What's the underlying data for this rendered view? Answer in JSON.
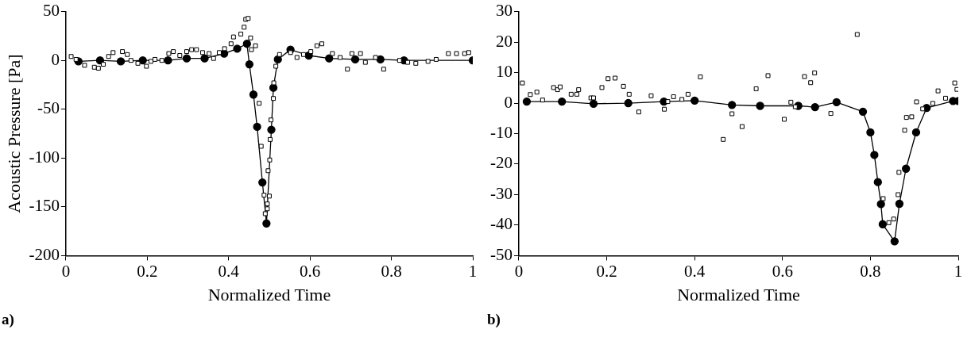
{
  "chart_data": [
    {
      "type": "scatter",
      "xlabel": "Normalized Time",
      "ylabel": "Acoustic Pressure [Pa]",
      "annotations": [
        "a)"
      ],
      "xlim": [
        0,
        1
      ],
      "xticks": [
        0,
        0.2,
        0.4,
        0.6,
        0.8,
        1
      ],
      "ylim": [
        -200,
        50
      ],
      "yticks": [
        -200,
        -150,
        -100,
        -50,
        0,
        50
      ],
      "grid": false,
      "legend": false,
      "series": [
        {
          "type": "scatter",
          "marker": "square",
          "color": "#000000",
          "x": [
            0.013,
            0.025,
            0.046,
            0.07,
            0.08,
            0.092,
            0.105,
            0.116,
            0.139,
            0.151,
            0.16,
            0.177,
            0.198,
            0.209,
            0.219,
            0.236,
            0.253,
            0.264,
            0.28,
            0.297,
            0.309,
            0.321,
            0.336,
            0.352,
            0.363,
            0.377,
            0.39,
            0.406,
            0.412,
            0.43,
            0.438,
            0.442,
            0.448,
            0.454,
            0.456,
            0.466,
            0.475,
            0.48,
            0.487,
            0.49,
            0.495,
            0.495,
            0.497,
            0.5,
            0.501,
            0.502,
            0.504,
            0.51,
            0.511,
            0.516,
            0.525,
            0.552,
            0.568,
            0.584,
            0.602,
            0.617,
            0.629,
            0.655,
            0.674,
            0.692,
            0.703,
            0.724,
            0.736,
            0.761,
            0.781,
            0.82,
            0.84,
            0.86,
            0.89,
            0.91,
            0.94,
            0.96,
            0.98,
            0.99
          ],
          "values": [
            4,
            1,
            -5,
            -7,
            -8,
            -4,
            4,
            8,
            9,
            6,
            0,
            -3,
            -6,
            -1,
            1,
            0,
            7,
            9,
            5,
            9,
            11,
            11,
            8,
            7,
            2,
            8,
            12,
            17,
            24,
            27,
            34,
            42,
            43,
            23,
            11,
            15,
            -44,
            -88,
            -138,
            -157,
            -152,
            -147,
            -113,
            -139,
            -102,
            -81,
            -61,
            -39,
            -23,
            -6,
            6,
            8,
            3,
            6,
            9,
            15,
            17,
            7,
            3,
            -9,
            7,
            7,
            -2,
            3,
            -9,
            0,
            -2,
            -3,
            -1,
            1,
            7,
            7,
            7,
            8
          ]
        },
        {
          "type": "line",
          "marker": "circle",
          "color": "#000000",
          "x": [
            0.031,
            0.084,
            0.135,
            0.189,
            0.251,
            0.297,
            0.341,
            0.389,
            0.421,
            0.445,
            0.451,
            0.461,
            0.47,
            0.483,
            0.493,
            0.505,
            0.51,
            0.521,
            0.552,
            0.597,
            0.647,
            0.711,
            0.773,
            0.831,
            1.0
          ],
          "values": [
            -1,
            0,
            -1,
            0,
            0,
            2,
            2,
            7,
            12,
            17,
            -4,
            -35,
            -68,
            -125,
            -167,
            -71,
            -28,
            1,
            11,
            5,
            2,
            1,
            1,
            0,
            0
          ]
        }
      ]
    },
    {
      "type": "scatter",
      "xlabel": "Normalized Time",
      "annotations": [
        "b)"
      ],
      "xlim": [
        0,
        1
      ],
      "xticks": [
        0,
        0.2,
        0.4,
        0.6,
        0.8,
        1
      ],
      "ylim": [
        -50,
        30
      ],
      "yticks": [
        -50,
        -40,
        -30,
        -20,
        -10,
        0,
        10,
        20,
        30
      ],
      "grid": false,
      "legend": false,
      "series": [
        {
          "type": "scatter",
          "marker": "square",
          "color": "#000000",
          "x": [
            0.008,
            0.026,
            0.041,
            0.054,
            0.079,
            0.088,
            0.094,
            0.119,
            0.132,
            0.136,
            0.164,
            0.17,
            0.189,
            0.203,
            0.219,
            0.238,
            0.251,
            0.273,
            0.301,
            0.331,
            0.339,
            0.352,
            0.371,
            0.385,
            0.413,
            0.465,
            0.485,
            0.508,
            0.54,
            0.567,
            0.604,
            0.619,
            0.629,
            0.65,
            0.664,
            0.673,
            0.71,
            0.77,
            0.829,
            0.842,
            0.853,
            0.863,
            0.865,
            0.878,
            0.882,
            0.894,
            0.905,
            0.919,
            0.942,
            0.954,
            0.971,
            0.992,
            0.997
          ],
          "values": [
            6.6,
            2.8,
            3.6,
            1,
            5.1,
            4.4,
            5.3,
            2.9,
            2.9,
            4.4,
            1.7,
            1.7,
            5.1,
            8,
            8.2,
            5.5,
            2.9,
            -2.9,
            2.4,
            -2,
            0.5,
            2.1,
            1.2,
            2.9,
            8.6,
            -11.9,
            -3.5,
            -7.7,
            4.7,
            9,
            -5.3,
            0.3,
            -1.2,
            8.7,
            6.7,
            9.9,
            -3.4,
            22.5,
            -31.3,
            -39.2,
            -38,
            -30,
            -22.7,
            -8.9,
            -4.7,
            -4.5,
            0.4,
            -1.9,
            -0.1,
            4,
            1.6,
            6.6,
            4.5
          ]
        },
        {
          "type": "line",
          "marker": "circle",
          "color": "#000000",
          "x": [
            0.018,
            0.098,
            0.17,
            0.249,
            0.33,
            0.4,
            0.485,
            0.549,
            0.636,
            0.674,
            0.723,
            0.783,
            0.8,
            0.809,
            0.817,
            0.824,
            0.828,
            0.855,
            0.866,
            0.881,
            0.904,
            0.928,
            0.988,
            1.0
          ],
          "values": [
            0.5,
            0.5,
            -0.2,
            0,
            0.5,
            0.8,
            -0.6,
            -0.9,
            -0.9,
            -1.3,
            0.3,
            -2.8,
            -9.6,
            -17,
            -25.9,
            -33.1,
            -39.7,
            -45.3,
            -33,
            -21.5,
            -9.6,
            -1.6,
            0.7,
            0.7
          ]
        }
      ]
    }
  ]
}
